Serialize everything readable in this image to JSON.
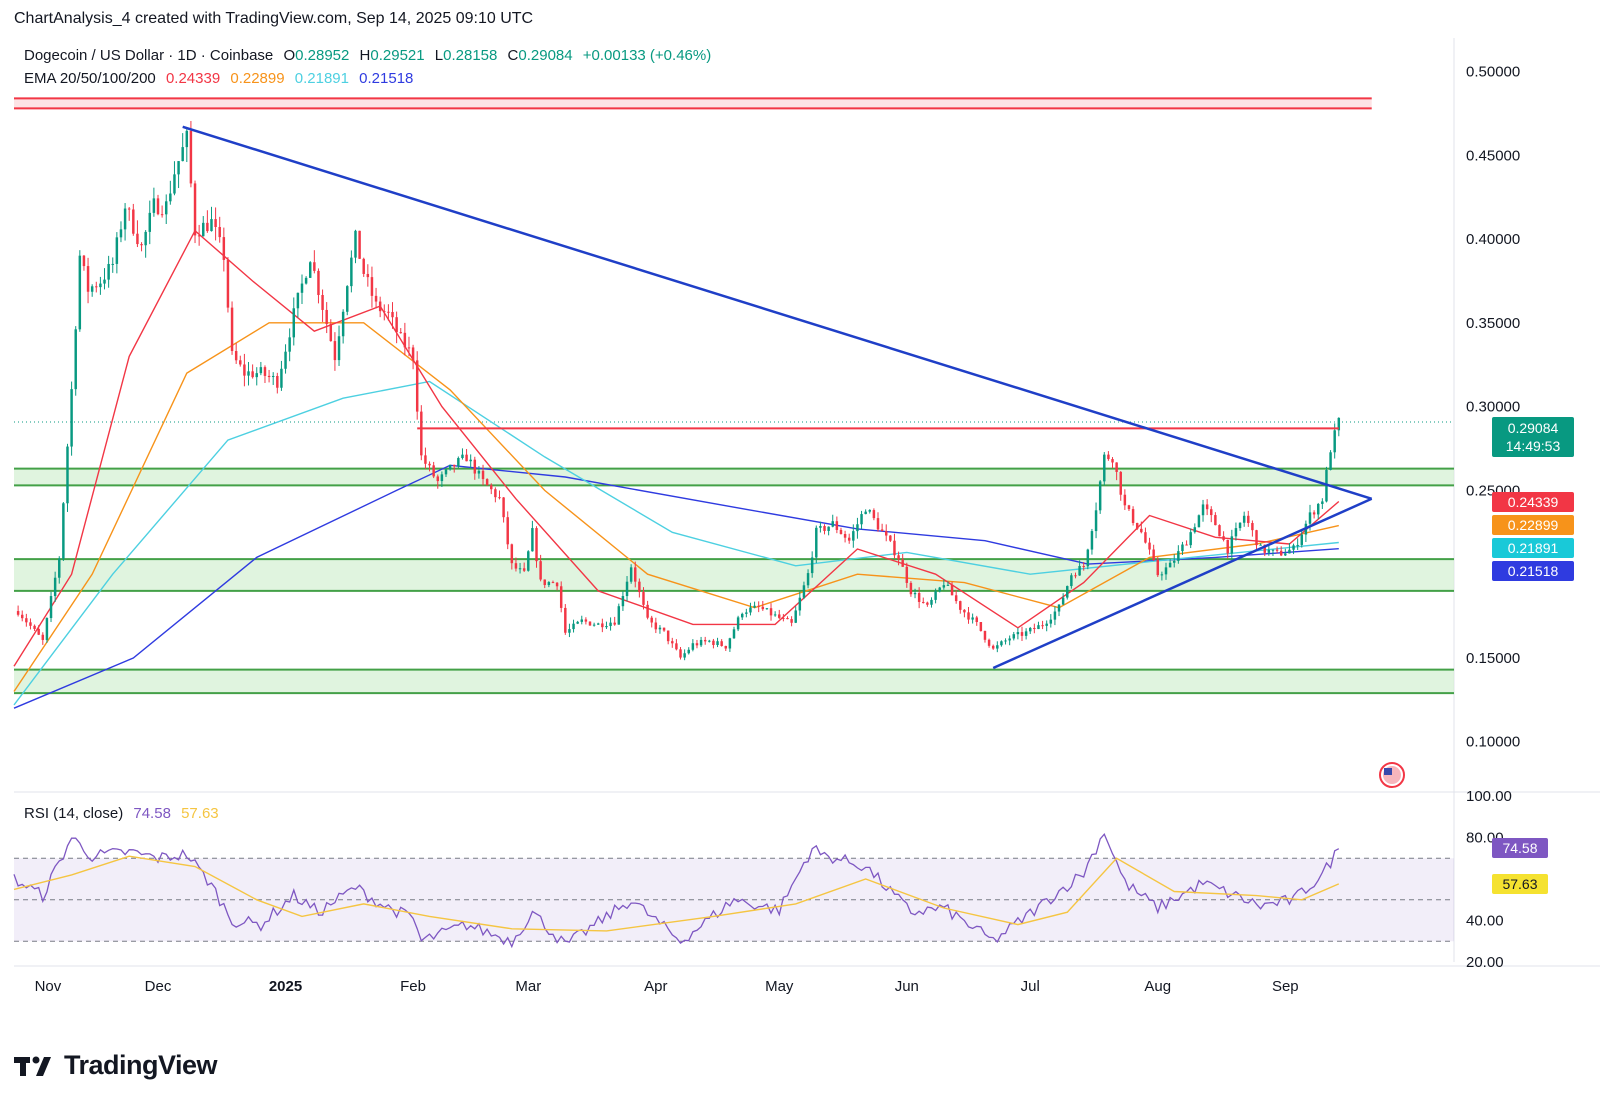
{
  "caption": "ChartAnalysis_4 created with TradingView.com, Sep 14, 2025 09:10 UTC",
  "legend": {
    "symbol": "Dogecoin / US Dollar · 1D · Coinbase",
    "o_label": "O",
    "o": "0.28952",
    "h_label": "H",
    "h": "0.29521",
    "l_label": "L",
    "l": "0.28158",
    "c_label": "C",
    "c": "0.29084",
    "change": "+0.00133 (+0.46%)",
    "ema_label": "EMA 20/50/100/200",
    "ema20": "0.24339",
    "ema50": "0.22899",
    "ema100": "0.21891",
    "ema200": "0.21518"
  },
  "price_tag": {
    "price": "0.29084",
    "countdown": "14:49:53"
  },
  "ema_tags": [
    "0.24339",
    "0.22899",
    "0.21891",
    "0.21518"
  ],
  "rsi_legend": {
    "label": "RSI (14, close)",
    "rsi": "74.58",
    "ma": "57.63"
  },
  "rsi_tags": [
    "74.58",
    "57.63"
  ],
  "brand": "TradingView",
  "colors": {
    "up": "#089981",
    "down": "#f23645",
    "trend": "#1f3fc7",
    "ema20": "#f23645",
    "ema50": "#f7931a",
    "ema100": "#4dd0e1",
    "ema200": "#2f3be0",
    "zone": "#d6f0d4",
    "zone_line": "#43a047",
    "resistance": "#f23645",
    "rsi": "#7e57c2",
    "rsi_ma": "#f5c542"
  },
  "chart_data": [
    {
      "type": "candlestick",
      "title": "Dogecoin / US Dollar · 1D · Coinbase",
      "x_ticks": [
        "Nov",
        "Dec",
        "2025",
        "Feb",
        "Mar",
        "Apr",
        "May",
        "Jun",
        "Jul",
        "Aug",
        "Sep"
      ],
      "x_tick_dates": [
        "2024-11-01",
        "2024-12-01",
        "2025-01-01",
        "2025-02-01",
        "2025-03-01",
        "2025-04-01",
        "2025-05-01",
        "2025-06-01",
        "2025-07-01",
        "2025-08-01",
        "2025-09-01"
      ],
      "y_ticks": [
        "0.50000",
        "0.45000",
        "0.40000",
        "0.35000",
        "0.30000",
        "0.25000",
        "0.15000",
        "0.10000"
      ],
      "ylim": [
        0.07,
        0.52
      ],
      "x_range": [
        "2024-10-27",
        "2025-10-12"
      ],
      "close_path": [
        [
          "2024-10-28",
          0.178
        ],
        [
          "2024-11-03",
          0.16
        ],
        [
          "2024-11-07",
          0.21
        ],
        [
          "2024-11-10",
          0.31
        ],
        [
          "2024-11-12",
          0.39
        ],
        [
          "2024-11-14",
          0.37
        ],
        [
          "2024-11-17",
          0.375
        ],
        [
          "2024-11-20",
          0.385
        ],
        [
          "2024-11-23",
          0.42
        ],
        [
          "2024-11-27",
          0.395
        ],
        [
          "2024-11-30",
          0.42
        ],
        [
          "2024-12-03",
          0.42
        ],
        [
          "2024-12-05",
          0.44
        ],
        [
          "2024-12-08",
          0.46
        ],
        [
          "2024-12-10",
          0.405
        ],
        [
          "2024-12-14",
          0.41
        ],
        [
          "2024-12-17",
          0.39
        ],
        [
          "2024-12-19",
          0.33
        ],
        [
          "2024-12-22",
          0.32
        ],
        [
          "2024-12-26",
          0.32
        ],
        [
          "2024-12-30",
          0.315
        ],
        [
          "2025-01-03",
          0.355
        ],
        [
          "2025-01-07",
          0.39
        ],
        [
          "2025-01-10",
          0.36
        ],
        [
          "2025-01-13",
          0.33
        ],
        [
          "2025-01-16",
          0.375
        ],
        [
          "2025-01-18",
          0.4
        ],
        [
          "2025-01-20",
          0.38
        ],
        [
          "2025-01-23",
          0.36
        ],
        [
          "2025-01-26",
          0.355
        ],
        [
          "2025-01-29",
          0.34
        ],
        [
          "2025-02-01",
          0.33
        ],
        [
          "2025-02-03",
          0.27
        ],
        [
          "2025-02-07",
          0.255
        ],
        [
          "2025-02-11",
          0.265
        ],
        [
          "2025-02-14",
          0.27
        ],
        [
          "2025-02-18",
          0.255
        ],
        [
          "2025-02-22",
          0.245
        ],
        [
          "2025-02-25",
          0.205
        ],
        [
          "2025-02-28",
          0.2
        ],
        [
          "2025-03-02",
          0.225
        ],
        [
          "2025-03-04",
          0.195
        ],
        [
          "2025-03-08",
          0.195
        ],
        [
          "2025-03-10",
          0.165
        ],
        [
          "2025-03-14",
          0.172
        ],
        [
          "2025-03-18",
          0.17
        ],
        [
          "2025-03-22",
          0.172
        ],
        [
          "2025-03-26",
          0.205
        ],
        [
          "2025-03-30",
          0.172
        ],
        [
          "2025-04-03",
          0.165
        ],
        [
          "2025-04-07",
          0.15
        ],
        [
          "2025-04-10",
          0.158
        ],
        [
          "2025-04-14",
          0.16
        ],
        [
          "2025-04-18",
          0.157
        ],
        [
          "2025-04-22",
          0.178
        ],
        [
          "2025-04-26",
          0.18
        ],
        [
          "2025-04-30",
          0.175
        ],
        [
          "2025-05-04",
          0.17
        ],
        [
          "2025-05-08",
          0.2
        ],
        [
          "2025-05-10",
          0.225
        ],
        [
          "2025-05-14",
          0.23
        ],
        [
          "2025-05-18",
          0.22
        ],
        [
          "2025-05-22",
          0.24
        ],
        [
          "2025-05-26",
          0.225
        ],
        [
          "2025-05-30",
          0.21
        ],
        [
          "2025-06-02",
          0.19
        ],
        [
          "2025-06-06",
          0.18
        ],
        [
          "2025-06-10",
          0.195
        ],
        [
          "2025-06-14",
          0.18
        ],
        [
          "2025-06-18",
          0.17
        ],
        [
          "2025-06-22",
          0.155
        ],
        [
          "2025-06-26",
          0.162
        ],
        [
          "2025-06-30",
          0.165
        ],
        [
          "2025-07-04",
          0.17
        ],
        [
          "2025-07-08",
          0.18
        ],
        [
          "2025-07-11",
          0.2
        ],
        [
          "2025-07-14",
          0.205
        ],
        [
          "2025-07-17",
          0.24
        ],
        [
          "2025-07-19",
          0.27
        ],
        [
          "2025-07-21",
          0.27
        ],
        [
          "2025-07-24",
          0.24
        ],
        [
          "2025-07-28",
          0.225
        ],
        [
          "2025-08-01",
          0.2
        ],
        [
          "2025-08-04",
          0.205
        ],
        [
          "2025-08-08",
          0.22
        ],
        [
          "2025-08-12",
          0.24
        ],
        [
          "2025-08-15",
          0.23
        ],
        [
          "2025-08-18",
          0.215
        ],
        [
          "2025-08-22",
          0.235
        ],
        [
          "2025-08-26",
          0.215
        ],
        [
          "2025-08-30",
          0.212
        ],
        [
          "2025-09-03",
          0.215
        ],
        [
          "2025-09-07",
          0.235
        ],
        [
          "2025-09-10",
          0.245
        ],
        [
          "2025-09-12",
          0.275
        ],
        [
          "2025-09-14",
          0.29084
        ]
      ],
      "resistance_levels": [
        {
          "price": 0.481,
          "from": "2024-10-27",
          "to": "2025-09-22"
        },
        {
          "price": 0.287,
          "from": "2025-02-02",
          "to": "2025-09-14"
        }
      ],
      "support_zones": [
        [
          0.253,
          0.263
        ],
        [
          0.19,
          0.209
        ],
        [
          0.129,
          0.143
        ]
      ],
      "trendlines": [
        {
          "name": "descending resistance",
          "from": [
            "2024-12-07",
            0.467
          ],
          "to": [
            "2025-09-22",
            0.245
          ]
        },
        {
          "name": "ascending support",
          "from": [
            "2025-06-22",
            0.144
          ],
          "to": [
            "2025-09-22",
            0.245
          ]
        }
      ],
      "ema_paths": {
        "ema20": [
          [
            "2024-10-27",
            0.145
          ],
          [
            "2024-11-10",
            0.2
          ],
          [
            "2024-11-24",
            0.33
          ],
          [
            "2024-12-10",
            0.405
          ],
          [
            "2024-12-24",
            0.375
          ],
          [
            "2025-01-08",
            0.345
          ],
          [
            "2025-01-24",
            0.36
          ],
          [
            "2025-02-08",
            0.3
          ],
          [
            "2025-02-26",
            0.245
          ],
          [
            "2025-03-18",
            0.19
          ],
          [
            "2025-04-10",
            0.17
          ],
          [
            "2025-04-30",
            0.17
          ],
          [
            "2025-05-20",
            0.215
          ],
          [
            "2025-06-08",
            0.2
          ],
          [
            "2025-06-28",
            0.168
          ],
          [
            "2025-07-14",
            0.195
          ],
          [
            "2025-07-30",
            0.235
          ],
          [
            "2025-08-15",
            0.222
          ],
          [
            "2025-09-02",
            0.218
          ],
          [
            "2025-09-14",
            0.24339
          ]
        ],
        "ema50": [
          [
            "2024-10-27",
            0.13
          ],
          [
            "2024-11-15",
            0.2
          ],
          [
            "2024-12-08",
            0.32
          ],
          [
            "2024-12-28",
            0.35
          ],
          [
            "2025-01-20",
            0.35
          ],
          [
            "2025-02-10",
            0.31
          ],
          [
            "2025-03-05",
            0.25
          ],
          [
            "2025-03-30",
            0.2
          ],
          [
            "2025-04-25",
            0.18
          ],
          [
            "2025-05-20",
            0.2
          ],
          [
            "2025-06-15",
            0.195
          ],
          [
            "2025-07-08",
            0.18
          ],
          [
            "2025-07-30",
            0.21
          ],
          [
            "2025-08-25",
            0.218
          ],
          [
            "2025-09-14",
            0.22899
          ]
        ],
        "ema100": [
          [
            "2024-10-27",
            0.122
          ],
          [
            "2024-11-20",
            0.2
          ],
          [
            "2024-12-18",
            0.28
          ],
          [
            "2025-01-15",
            0.305
          ],
          [
            "2025-02-05",
            0.315
          ],
          [
            "2025-03-05",
            0.27
          ],
          [
            "2025-04-05",
            0.225
          ],
          [
            "2025-05-05",
            0.205
          ],
          [
            "2025-06-01",
            0.213
          ],
          [
            "2025-07-01",
            0.2
          ],
          [
            "2025-08-01",
            0.208
          ],
          [
            "2025-09-14",
            0.21891
          ]
        ],
        "ema200": [
          [
            "2024-10-27",
            0.12
          ],
          [
            "2024-11-25",
            0.15
          ],
          [
            "2024-12-25",
            0.21
          ],
          [
            "2025-01-28",
            0.25
          ],
          [
            "2025-02-10",
            0.265
          ],
          [
            "2025-03-10",
            0.258
          ],
          [
            "2025-04-20",
            0.24
          ],
          [
            "2025-05-20",
            0.227
          ],
          [
            "2025-06-20",
            0.22
          ],
          [
            "2025-07-15",
            0.206
          ],
          [
            "2025-08-15",
            0.21
          ],
          [
            "2025-09-14",
            0.21518
          ]
        ]
      }
    },
    {
      "type": "line",
      "title": "RSI (14, close)",
      "y_ticks": [
        "100.00",
        "80.00",
        "40.00",
        "20.00"
      ],
      "ylim": [
        20,
        100
      ],
      "bands": [
        30,
        50,
        70
      ],
      "series": [
        {
          "name": "RSI (14, close)",
          "values": [
            [
              "2024-10-27",
              60
            ],
            [
              "2024-11-03",
              52
            ],
            [
              "2024-11-10",
              80
            ],
            [
              "2024-11-15",
              71
            ],
            [
              "2024-11-24",
              73
            ],
            [
              "2024-12-01",
              70
            ],
            [
              "2024-12-08",
              72
            ],
            [
              "2024-12-14",
              57
            ],
            [
              "2024-12-19",
              40
            ],
            [
              "2024-12-26",
              38
            ],
            [
              "2025-01-03",
              52
            ],
            [
              "2025-01-09",
              44
            ],
            [
              "2025-01-18",
              56
            ],
            [
              "2025-01-24",
              48
            ],
            [
              "2025-02-01",
              41
            ],
            [
              "2025-02-03",
              30
            ],
            [
              "2025-02-14",
              38
            ],
            [
              "2025-02-25",
              30
            ],
            [
              "2025-03-02",
              44
            ],
            [
              "2025-03-10",
              28
            ],
            [
              "2025-03-26",
              50
            ],
            [
              "2025-04-07",
              30
            ],
            [
              "2025-04-20",
              50
            ],
            [
              "2025-05-01",
              45
            ],
            [
              "2025-05-09",
              75
            ],
            [
              "2025-05-11",
              72
            ],
            [
              "2025-05-22",
              66
            ],
            [
              "2025-06-02",
              44
            ],
            [
              "2025-06-10",
              46
            ],
            [
              "2025-06-22",
              30
            ],
            [
              "2025-07-04",
              48
            ],
            [
              "2025-07-14",
              63
            ],
            [
              "2025-07-19",
              83
            ],
            [
              "2025-07-24",
              58
            ],
            [
              "2025-08-01",
              46
            ],
            [
              "2025-08-12",
              58
            ],
            [
              "2025-08-26",
              47
            ],
            [
              "2025-09-03",
              50
            ],
            [
              "2025-09-10",
              62
            ],
            [
              "2025-09-14",
              74.58
            ]
          ]
        },
        {
          "name": "RSI MA",
          "values": [
            [
              "2024-10-27",
              55
            ],
            [
              "2024-11-10",
              62
            ],
            [
              "2024-11-24",
              71
            ],
            [
              "2024-12-10",
              66
            ],
            [
              "2024-12-25",
              50
            ],
            [
              "2025-01-05",
              42
            ],
            [
              "2025-01-20",
              48
            ],
            [
              "2025-02-05",
              42
            ],
            [
              "2025-02-25",
              36
            ],
            [
              "2025-03-20",
              35
            ],
            [
              "2025-04-15",
              42
            ],
            [
              "2025-05-05",
              48
            ],
            [
              "2025-05-22",
              60
            ],
            [
              "2025-06-10",
              46
            ],
            [
              "2025-06-28",
              38
            ],
            [
              "2025-07-10",
              44
            ],
            [
              "2025-07-22",
              70
            ],
            [
              "2025-08-05",
              54
            ],
            [
              "2025-08-25",
              52
            ],
            [
              "2025-09-05",
              50
            ],
            [
              "2025-09-14",
              57.63
            ]
          ]
        }
      ]
    }
  ]
}
